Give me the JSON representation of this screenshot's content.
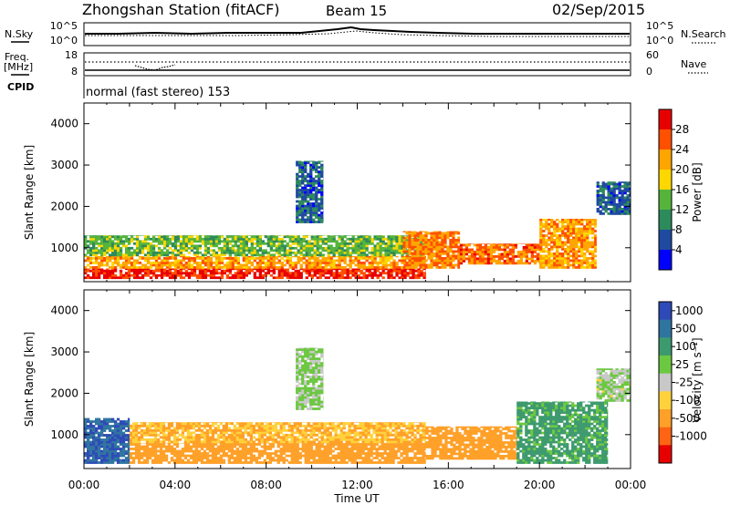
{
  "header": {
    "station": "Zhongshan Station (fitACF)",
    "beam": "Beam 15",
    "date": "02/Sep/2015"
  },
  "noise_panel": {
    "left_label": "N.Sky",
    "right_label": "N.Search",
    "left_ticks": [
      "10^5",
      "10^0"
    ],
    "right_ticks": [
      "10^5",
      "10^0"
    ]
  },
  "freq_panel": {
    "left_label_top": "Freq.",
    "left_label_bottom": "[MHz]",
    "left_ticks": [
      "18",
      "8"
    ],
    "right_label": "Nave",
    "right_ticks": [
      "60",
      "0"
    ]
  },
  "cpid": {
    "label": "CPID",
    "mode": "normal (fast stereo) 153"
  },
  "x_axis": {
    "label": "Time UT",
    "ticks": [
      "00:00",
      "04:00",
      "08:00",
      "12:00",
      "16:00",
      "20:00",
      "00:00"
    ],
    "range_hours": [
      0,
      24
    ]
  },
  "y_axis": {
    "label": "Slant Range [km]",
    "ticks": [
      "1000",
      "2000",
      "3000",
      "4000"
    ],
    "range_km": [
      180,
      4500
    ]
  },
  "power_colorbar": {
    "title": "Power [dB]",
    "ticks": [
      "4",
      "8",
      "12",
      "16",
      "20",
      "24",
      "28"
    ],
    "colors": [
      "#0000ff",
      "#1f4aa0",
      "#2d8a5a",
      "#56b43c",
      "#ffd700",
      "#ffa500",
      "#ff5000",
      "#e80000"
    ]
  },
  "velocity_colorbar": {
    "title": "Velocity [m s⁻¹]",
    "ticks": [
      "1000",
      "500",
      "100",
      "25",
      "-25",
      "-100",
      "-500",
      "-1000"
    ],
    "colors": [
      "#2e49b8",
      "#2f75a0",
      "#3d9a6e",
      "#6cc840",
      "#c8c8c8",
      "#ffd23c",
      "#ffa028",
      "#ff6414",
      "#e80000"
    ]
  },
  "chart_data": [
    {
      "type": "heatmap",
      "title": "Power [dB]",
      "xlabel": "Time UT",
      "ylabel": "Slant Range [km]",
      "xlim": [
        0,
        24
      ],
      "ylim": [
        180,
        4500
      ],
      "clim": [
        0,
        30
      ],
      "regions": [
        {
          "t": [
            0,
            15
          ],
          "r": [
            250,
            500
          ],
          "value": 29
        },
        {
          "t": [
            0,
            15
          ],
          "r": [
            500,
            800
          ],
          "value": 22
        },
        {
          "t": [
            0,
            15
          ],
          "r": [
            800,
            1300
          ],
          "value": 14
        },
        {
          "t": [
            14,
            16.5
          ],
          "r": [
            500,
            1400
          ],
          "value": 24
        },
        {
          "t": [
            16.5,
            20
          ],
          "r": [
            600,
            1100
          ],
          "value": 25
        },
        {
          "t": [
            20,
            22.5
          ],
          "r": [
            500,
            1700
          ],
          "value": 22
        },
        {
          "t": [
            9.3,
            10.5
          ],
          "r": [
            1600,
            3100
          ],
          "value": 7
        },
        {
          "t": [
            22.5,
            24
          ],
          "r": [
            1800,
            2600
          ],
          "value": 7
        }
      ]
    },
    {
      "type": "heatmap",
      "title": "Velocity [m s⁻¹]",
      "xlabel": "Time UT",
      "ylabel": "Slant Range [km]",
      "xlim": [
        0,
        24
      ],
      "ylim": [
        180,
        4500
      ],
      "clim": [
        -1000,
        1000
      ],
      "regions": [
        {
          "t": [
            0,
            2
          ],
          "r": [
            300,
            1400
          ],
          "value": 700
        },
        {
          "t": [
            2,
            15
          ],
          "r": [
            300,
            800
          ],
          "value": -150
        },
        {
          "t": [
            2,
            15
          ],
          "r": [
            800,
            1300
          ],
          "value": -60
        },
        {
          "t": [
            15,
            19
          ],
          "r": [
            400,
            1200
          ],
          "value": -200
        },
        {
          "t": [
            19,
            23
          ],
          "r": [
            300,
            1800
          ],
          "value": 90
        },
        {
          "t": [
            9.3,
            10.5
          ],
          "r": [
            1600,
            3100
          ],
          "value": 20
        },
        {
          "t": [
            22.5,
            24
          ],
          "r": [
            1800,
            2600
          ],
          "value": 10
        }
      ]
    }
  ]
}
